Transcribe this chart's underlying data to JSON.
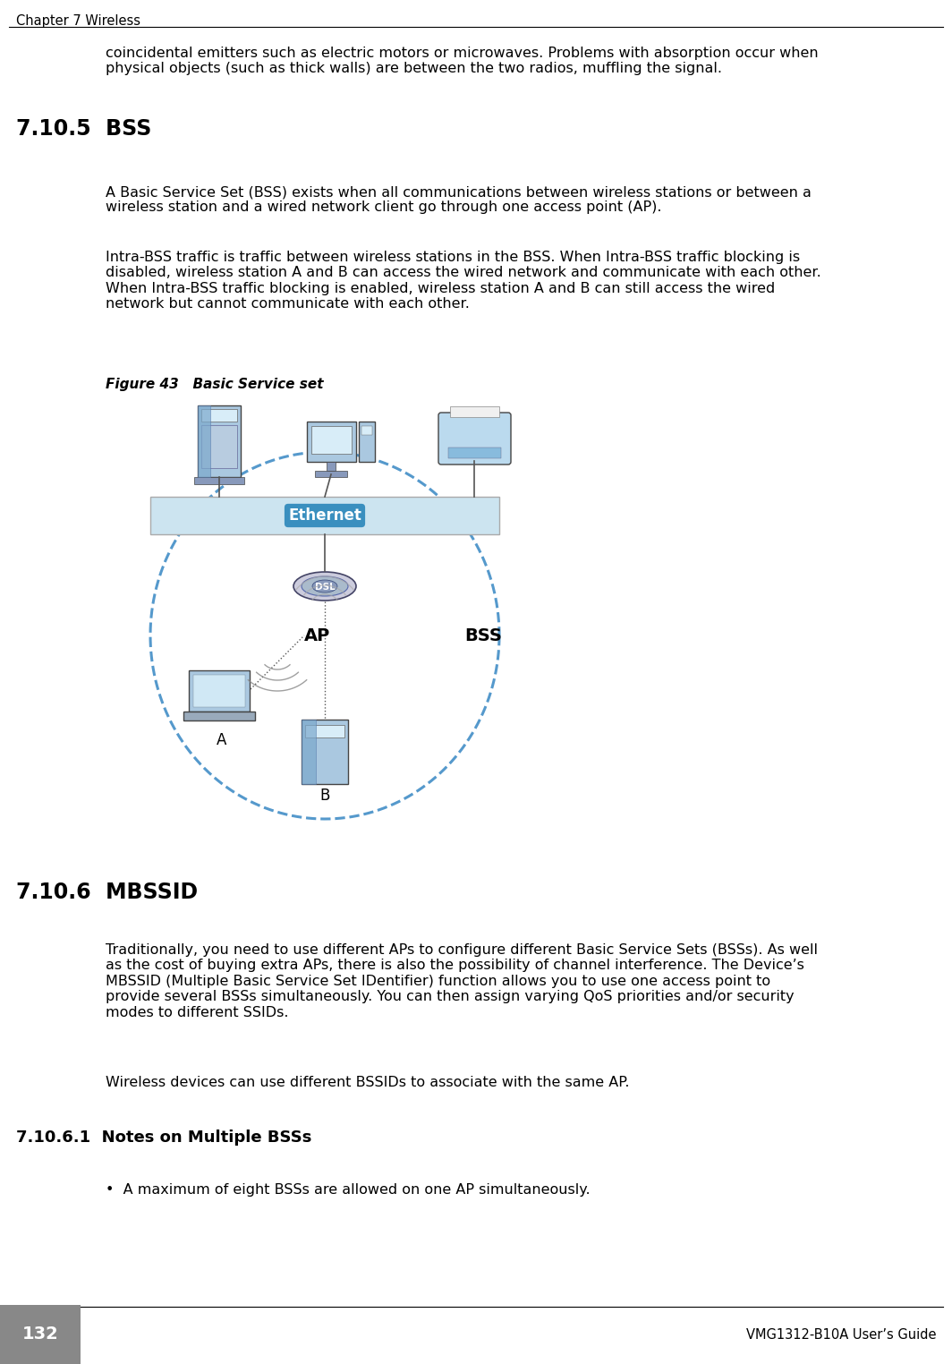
{
  "bg_color": "#ffffff",
  "header_text": "Chapter 7 Wireless",
  "footer_page": "132",
  "footer_right": "VMG1312-B10A User’s Guide",
  "section_705_title": "7.10.5  BSS",
  "section_706_title": "7.10.6  MBSSID",
  "section_7061_title": "7.10.6.1  Notes on Multiple BSSs",
  "para_intro": "coincidental emitters such as electric motors or microwaves. Problems with absorption occur when\nphysical objects (such as thick walls) are between the two radios, muffling the signal.",
  "para_bss1": "A Basic Service Set (BSS) exists when all communications between wireless stations or between a\nwireless station and a wired network client go through one access point (AP).",
  "para_bss2": "Intra-BSS traffic is traffic between wireless stations in the BSS. When Intra-BSS traffic blocking is\ndisabled, wireless station A and B can access the wired network and communicate with each other.\nWhen Intra-BSS traffic blocking is enabled, wireless station A and B can still access the wired\nnetwork but cannot communicate with each other.",
  "figure_label": "Figure 43   Basic Service set",
  "para_mbssid1": "Traditionally, you need to use different APs to configure different Basic Service Sets (BSSs). As well\nas the cost of buying extra APs, there is also the possibility of channel interference. The Device’s\nMBSSID (Multiple Basic Service Set IDentifier) function allows you to use one access point to\nprovide several BSSs simultaneously. You can then assign varying QoS priorities and/or security\nmodes to different SSIDs.",
  "para_mbssid2": "Wireless devices can use different BSSIDs to associate with the same AP.",
  "bullet_1": "•  A maximum of eight BSSs are allowed on one AP simultaneously.",
  "text_fontsize": 11.5,
  "header_fontsize": 10.5,
  "section_fontsize": 17,
  "subsection_fontsize": 13,
  "figure_label_fontsize": 11,
  "footer_fontsize": 10.5
}
